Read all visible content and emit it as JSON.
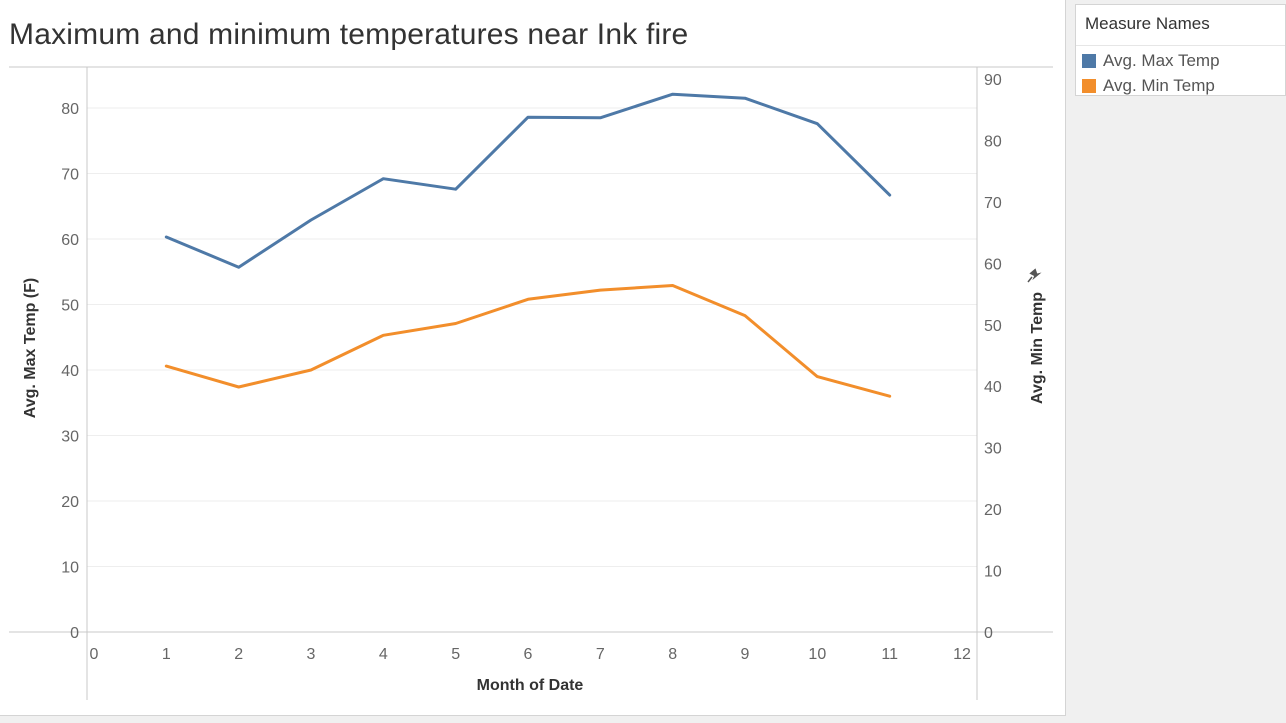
{
  "chart_data": {
    "type": "line",
    "title": "Maximum and minimum temperatures near Ink fire",
    "xlabel": "Month of Date",
    "ylabel_left": "Avg. Max Temp (F)",
    "ylabel_right": "Avg. Min Temp",
    "x_ticks": [
      0,
      1,
      2,
      3,
      4,
      5,
      6,
      7,
      8,
      9,
      10,
      11,
      12
    ],
    "xlim": [
      0,
      12
    ],
    "y_left_ticks": [
      0,
      10,
      20,
      30,
      40,
      50,
      60,
      70,
      80
    ],
    "y_left_lim": [
      0,
      80
    ],
    "y_right_ticks": [
      0,
      10,
      20,
      30,
      40,
      50,
      60,
      70,
      80,
      90
    ],
    "y_right_lim": [
      0,
      90
    ],
    "grid": true,
    "legend_position": "right",
    "x": [
      1,
      2,
      3,
      4,
      5,
      6,
      7,
      8,
      9,
      10,
      11
    ],
    "series": [
      {
        "name": "Avg. Max Temp",
        "axis": "left",
        "color": "#4e79a7",
        "values": [
          60.3,
          55.7,
          62.9,
          69.2,
          67.6,
          78.6,
          78.5,
          82.1,
          81.5,
          77.6,
          66.7
        ]
      },
      {
        "name": "Avg. Min Temp",
        "axis": "left",
        "color": "#f28e2b",
        "values": [
          40.6,
          37.4,
          40.0,
          45.3,
          47.1,
          50.8,
          52.2,
          52.9,
          48.3,
          39.0,
          36.0
        ]
      }
    ]
  },
  "legend": {
    "title": "Measure Names",
    "items": [
      {
        "label": "Avg. Max Temp",
        "color": "#4e79a7"
      },
      {
        "label": "Avg. Min Temp",
        "color": "#f28e2b"
      }
    ]
  },
  "icons": {
    "right_axis_pin": "pin-icon"
  }
}
